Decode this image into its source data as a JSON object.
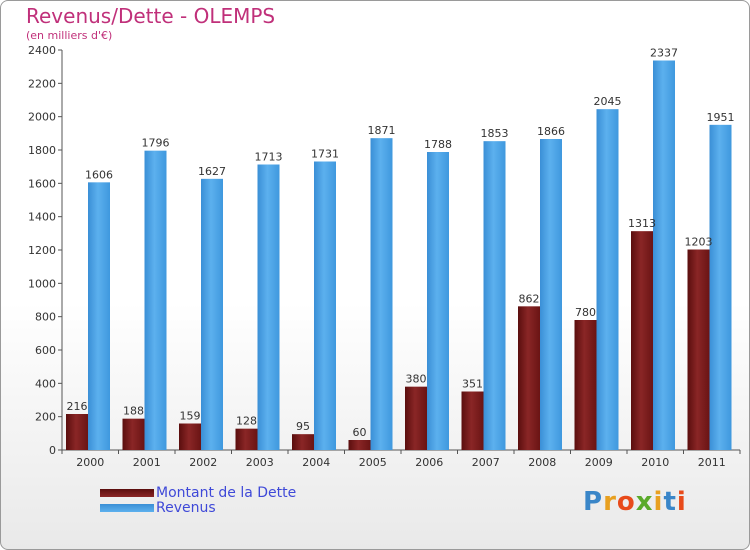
{
  "title": "Revenus/Dette - OLEMPS",
  "subtitle": "(en milliers d'€)",
  "logo": {
    "letters": [
      "P",
      "r",
      "o",
      "x",
      "i",
      "t",
      "i"
    ],
    "colors": [
      "#3a86c8",
      "#e8a020",
      "#e84a1a",
      "#5aaa2a",
      "#e8a020",
      "#3a86c8",
      "#e84a1a"
    ]
  },
  "chart_data": {
    "type": "bar",
    "title": "Revenus/Dette - OLEMPS",
    "subtitle": "(en milliers d'€)",
    "xlabel": "",
    "ylabel": "",
    "ylim": [
      0,
      2400
    ],
    "yticks": [
      0,
      200,
      400,
      600,
      800,
      1000,
      1200,
      1400,
      1600,
      1800,
      2000,
      2200,
      2400
    ],
    "grid": false,
    "legend_position": "bottom-left",
    "categories": [
      "2000",
      "2001",
      "2002",
      "2003",
      "2004",
      "2005",
      "2006",
      "2007",
      "2008",
      "2009",
      "2010",
      "2011"
    ],
    "series": [
      {
        "name": "Montant de la Dette",
        "color": "#7a1a1a",
        "values": [
          216,
          188,
          159,
          128,
          95,
          60,
          380,
          351,
          862,
          780,
          1313,
          1203
        ],
        "labels": [
          "216",
          "188",
          "159",
          "128",
          "95",
          "60",
          "380",
          "351",
          "862",
          "780",
          "1313",
          "1203"
        ]
      },
      {
        "name": "Revenus",
        "color": "#4aa3e4",
        "values": [
          1606,
          1796,
          1627,
          1713,
          1731,
          1871,
          1788,
          1853,
          1866,
          2045,
          2337,
          1951
        ],
        "labels": [
          "1606",
          "1796",
          "1627",
          "1713",
          "1731",
          "1871",
          "1788",
          "1853",
          "1866",
          "2045",
          "2337",
          "1951"
        ]
      }
    ]
  }
}
